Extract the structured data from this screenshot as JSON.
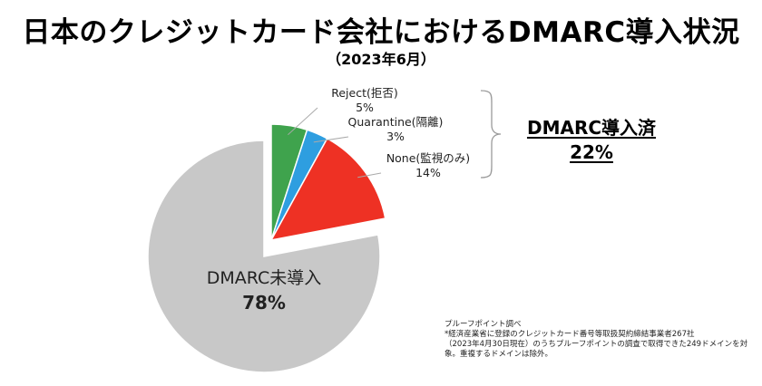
{
  "title": "日本のクレジットカード会社におけるDMARC導入状況",
  "subtitle": "（2023年6月）",
  "adopted_group": {
    "label": "DMARC導入済",
    "value": "22%"
  },
  "chart_data": {
    "type": "pie",
    "title": "日本のクレジットカード会社におけるDMARC導入状況",
    "subtitle": "（2023年6月）",
    "slices": [
      {
        "label": "Reject(拒否)",
        "value": 5,
        "value_label": "5%",
        "color": "#3fa34d",
        "exploded": true
      },
      {
        "label": "Quarantine(隔離)",
        "value": 3,
        "value_label": "3%",
        "color": "#2e9ee0",
        "exploded": true
      },
      {
        "label": "None(監視のみ)",
        "value": 14,
        "value_label": "14%",
        "color": "#ee3124",
        "exploded": true
      },
      {
        "label": "DMARC未導入",
        "value": 78,
        "value_label": "78%",
        "color": "#c8c8c8",
        "exploded": false
      }
    ]
  },
  "source_note": {
    "lines": [
      "プルーフポイント調べ",
      "*経済産業省に登録のクレジットカード番号等取扱契約締結事業者267社",
      "（2023年4月30日現在）のうちプルーフポイントの調査で取得できた249ドメインを対",
      "象。重複するドメインは除外。"
    ]
  }
}
